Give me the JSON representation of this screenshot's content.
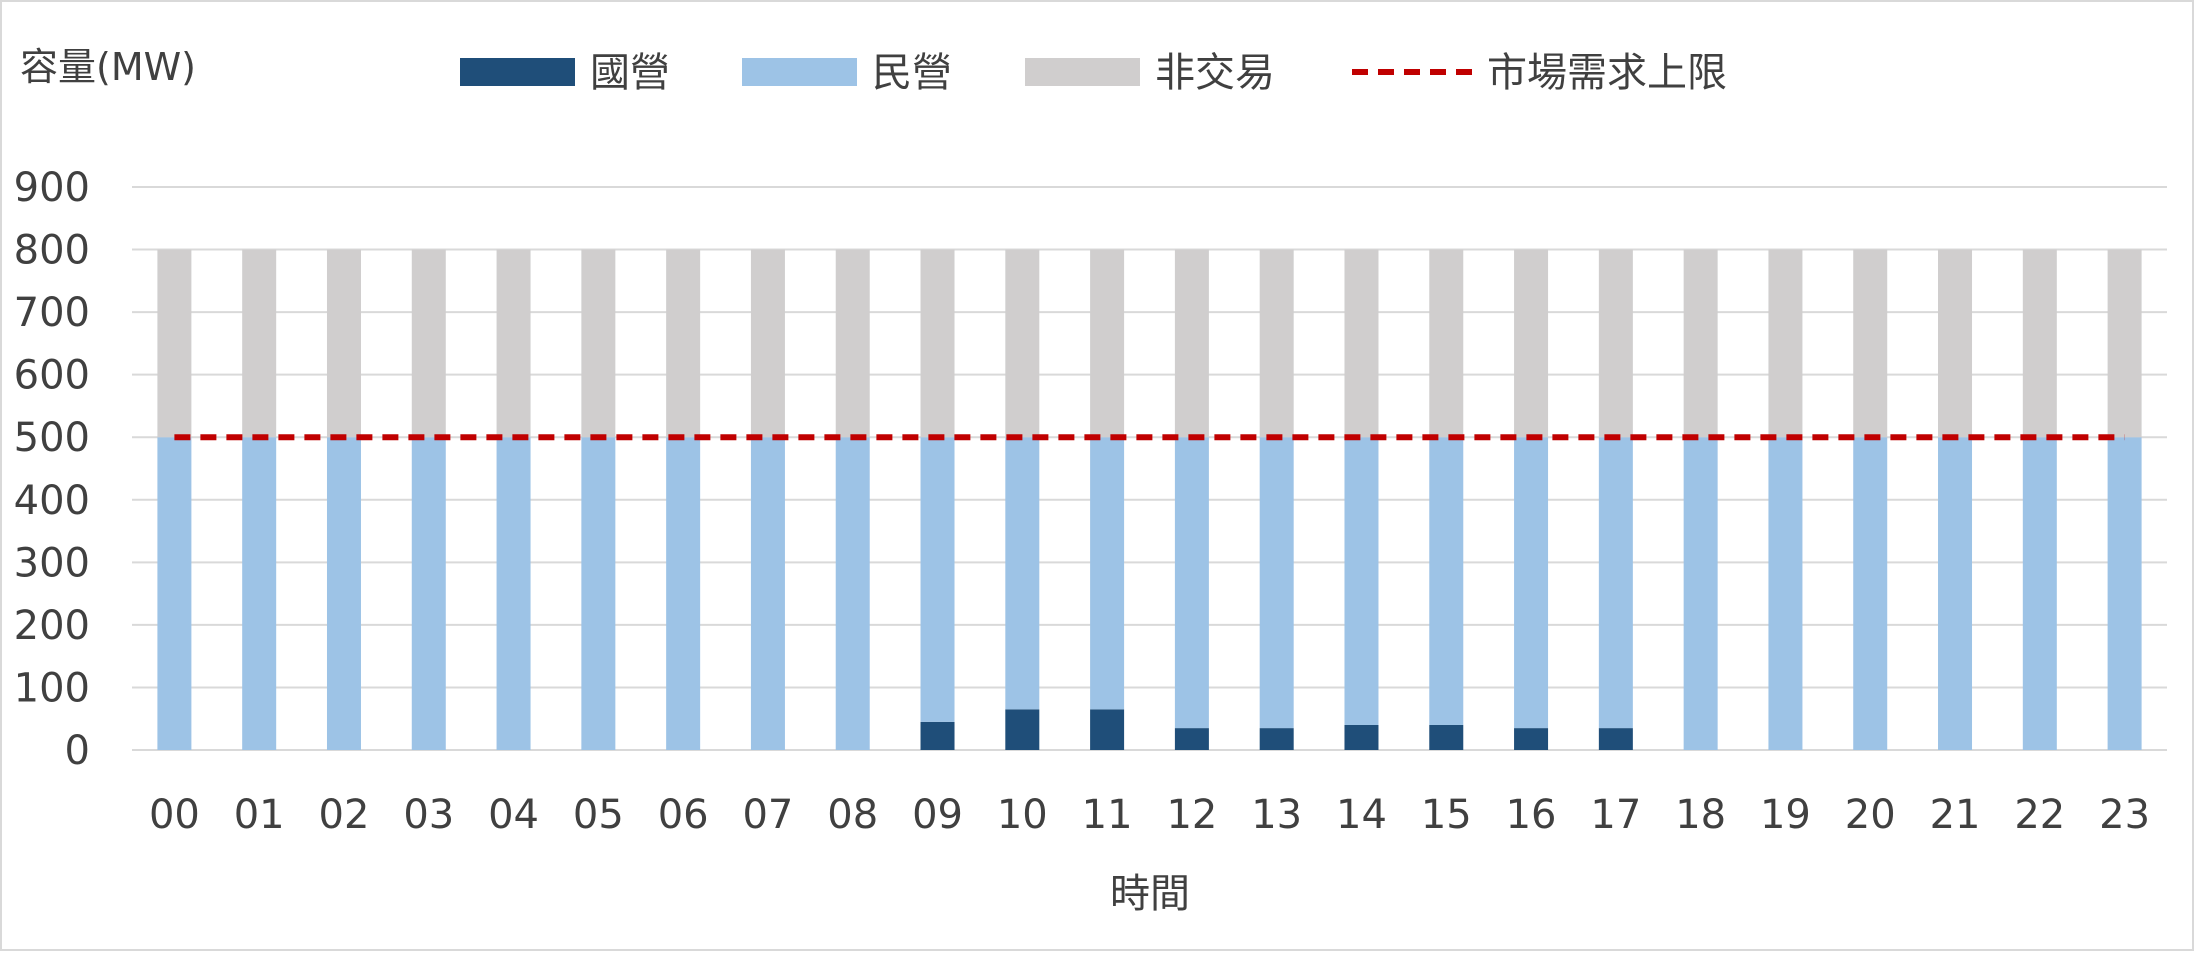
{
  "chart_data": {
    "type": "bar",
    "stacked": true,
    "ylabel": "容量(MW)",
    "xlabel": "時間",
    "ylim": [
      0,
      900
    ],
    "yticks": [
      0,
      100,
      200,
      300,
      400,
      500,
      600,
      700,
      800,
      900
    ],
    "grid": true,
    "legend_position": "top",
    "categories": [
      "00",
      "01",
      "02",
      "03",
      "04",
      "05",
      "06",
      "07",
      "08",
      "09",
      "10",
      "11",
      "12",
      "13",
      "14",
      "15",
      "16",
      "17",
      "18",
      "19",
      "20",
      "21",
      "22",
      "23"
    ],
    "series": [
      {
        "name": "國營",
        "color": "#1f4e79",
        "values": [
          0,
          0,
          0,
          0,
          0,
          0,
          0,
          0,
          0,
          45,
          65,
          65,
          35,
          35,
          40,
          40,
          35,
          35,
          0,
          0,
          0,
          0,
          0,
          0
        ]
      },
      {
        "name": "民營",
        "color": "#9dc3e6",
        "values": [
          500,
          500,
          500,
          500,
          500,
          500,
          500,
          500,
          500,
          455,
          435,
          435,
          465,
          465,
          460,
          460,
          465,
          465,
          500,
          500,
          500,
          500,
          500,
          500
        ]
      },
      {
        "name": "非交易",
        "color": "#d0cece",
        "values": [
          300,
          300,
          300,
          300,
          300,
          300,
          300,
          300,
          300,
          300,
          300,
          300,
          300,
          300,
          300,
          300,
          300,
          300,
          300,
          300,
          300,
          300,
          300,
          300
        ]
      }
    ],
    "reference_line": {
      "name": "市場需求上限",
      "value": 500,
      "color": "#c00000",
      "style": "dashed"
    }
  }
}
